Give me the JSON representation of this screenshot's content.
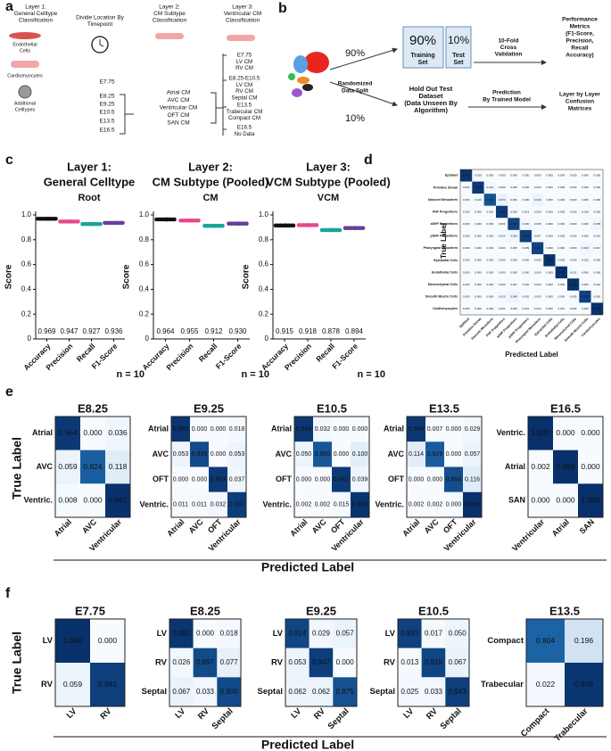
{
  "panel_a": {
    "letter": "a",
    "layer1": [
      "Layer 1:",
      "General Celltype",
      "Classification"
    ],
    "cells": [
      [
        "Endothelial",
        "Cells"
      ],
      [
        "Cardiomyocytes"
      ],
      [
        "Additional",
        "Celltypes"
      ]
    ],
    "timepoint_title": [
      "Divide Location By",
      "Timepoint"
    ],
    "timepoints": [
      "E7.75",
      "E8.25",
      "E9.25",
      "E10.5",
      "E13.5",
      "E16.5"
    ],
    "layer2": [
      "Layer 2:",
      "CM Subtype",
      "Classification"
    ],
    "cm_subtypes": [
      "Atrial CM",
      "AVC CM",
      "Ventricular CM",
      "OFT CM",
      "SAN CM"
    ],
    "layer3": [
      "Layer 3:",
      "Ventricular CM",
      "Classification"
    ],
    "vcm_groups": [
      [
        "E7.75",
        "LV CM",
        "RV CM"
      ],
      [
        "E8.25-E10.5",
        "LV CM",
        "RV CM",
        "Septal CM"
      ],
      [
        "E13.5",
        "Trabecular CM",
        "Compact CM"
      ],
      [
        "E16.5",
        "No Data"
      ]
    ]
  },
  "panel_b": {
    "letter": "b",
    "split_top": "90%",
    "split_bottom": "10%",
    "split_label": [
      "Randomized",
      "Data Split"
    ],
    "train_pct": "90%",
    "train_label": [
      "Training",
      "Set"
    ],
    "test_pct": "10%",
    "test_label": [
      "Test",
      "Set"
    ],
    "cv_label": [
      "10-Fold",
      "Cross",
      "Validation"
    ],
    "metrics_label": [
      "Performance",
      "Metrics",
      "(F1-Score,",
      "Precision,",
      "Recall",
      "Accuracy)"
    ],
    "holdout_label": [
      "Hold Out Test",
      "Dataset",
      "(Data Unseen By",
      "Algorithm)"
    ],
    "prediction_label": [
      "Prediction",
      "By Trained Model"
    ],
    "confusion_label": [
      "Layer by Layer",
      "Confusion",
      "Matrices"
    ]
  },
  "panel_c": {
    "letter": "c"
  },
  "panel_d": {
    "letter": "d",
    "y_label": "True Label",
    "x_label": "Predicted Label"
  },
  "panel_e": {
    "letter": "e",
    "y_label": "True Label",
    "x_label": "Predicted Label"
  },
  "panel_f": {
    "letter": "f",
    "y_label": "True Label",
    "x_label": "Predicted Label"
  },
  "chart_data": [
    {
      "type": "dot",
      "title": [
        "Layer 1:",
        "General Celltype"
      ],
      "subtitle": "Root",
      "y_label": "Score",
      "n_label": "n = 10",
      "categories": [
        "Accuracy",
        "Precision",
        "Recall",
        "F1-Score"
      ],
      "values": [
        0.969,
        0.947,
        0.927,
        0.936
      ],
      "value_labels": [
        "0.969",
        "0.947",
        "0.927",
        "0.936"
      ],
      "colors": [
        "#111111",
        "#e8478b",
        "#1aa39a",
        "#6a3d9a"
      ],
      "ylim": [
        0,
        1
      ],
      "yticks": [
        0,
        0.2,
        0.4,
        0.6,
        0.8,
        {
          "value": 1,
          "label": "1.0"
        }
      ]
    },
    {
      "type": "dot",
      "title": [
        "Layer 2:",
        "CM Subtype (Pooled)"
      ],
      "subtitle": "CM",
      "y_label": "Score",
      "n_label": "n = 10",
      "categories": [
        "Accuracy",
        "Precision",
        "Recall",
        "F1-Score"
      ],
      "values": [
        0.964,
        0.955,
        0.912,
        0.93
      ],
      "value_labels": [
        "0.964",
        "0.955",
        "0.912",
        "0.930"
      ],
      "colors": [
        "#111111",
        "#e8478b",
        "#1aa39a",
        "#6a3d9a"
      ],
      "ylim": [
        0,
        1
      ],
      "yticks": [
        0,
        0.2,
        0.4,
        0.6,
        0.8,
        {
          "value": 1,
          "label": "1.0"
        }
      ]
    },
    {
      "type": "dot",
      "title": [
        "Layer 3:",
        "VCM Subtype (Pooled)"
      ],
      "subtitle": "VCM",
      "y_label": "Score",
      "n_label": "n = 10",
      "categories": [
        "Accuracy",
        "Precision",
        "Recall",
        "F1-Score"
      ],
      "values": [
        0.915,
        0.918,
        0.878,
        0.894
      ],
      "value_labels": [
        "0.915",
        "0.918",
        "0.878",
        "0.894"
      ],
      "colors": [
        "#111111",
        "#e8478b",
        "#1aa39a",
        "#6a3d9a"
      ],
      "ylim": [
        0,
        1
      ],
      "yticks": [
        0,
        0.2,
        0.4,
        0.6,
        0.8,
        {
          "value": 1,
          "label": "1.0"
        }
      ]
    },
    {
      "type": "heatmap",
      "rows": [
        "Epiblast",
        "Primitive Streak",
        "Nascent Mesoderm",
        "FHF Progenitors",
        "aSHF Progenitors",
        "pSHF Progenitors",
        "Pharyngeal Mesoderm",
        "Epicardial Cells",
        "Endothelial Cells",
        "Mesenchymal Cells",
        "Smooth Muscle Cells",
        "Cardiomyocytes"
      ],
      "columns": [
        "Epiblast",
        "Primitive Streak",
        "Nascent Mesoderm",
        "FHF Progenitors",
        "aSHF Progenitors",
        "pSHF Progenitors",
        "Pharyngeal Mesoderm",
        "Epicardial Cells",
        "Endothelial Cells",
        "Mesenchymal Cells",
        "Smooth Muscle Cells",
        "Cardiomyocytes"
      ],
      "values": [
        [
          0.981,
          0.019,
          0,
          0,
          0,
          0,
          0,
          0,
          0,
          0,
          0,
          0
        ],
        [
          0,
          0.969,
          0.031,
          0,
          0,
          0,
          0,
          0,
          0,
          0,
          0,
          0
        ],
        [
          0,
          0.014,
          0.867,
          0.07,
          0,
          0,
          0.049,
          0,
          0,
          0,
          0,
          0
        ],
        [
          0,
          0,
          0,
          0.952,
          0.008,
          0.013,
          0.009,
          0,
          0,
          0,
          0.018,
          0
        ],
        [
          0,
          0,
          0,
          0.003,
          0.924,
          0.03,
          0.008,
          0,
          0,
          0,
          0,
          0.035
        ],
        [
          0,
          0,
          0,
          0.014,
          0.034,
          0.944,
          0.007,
          0,
          0,
          0,
          0,
          0.001
        ],
        [
          0,
          0,
          0,
          0.004,
          0.005,
          0.009,
          0.922,
          0,
          0,
          0,
          0.043,
          0.017
        ],
        [
          0,
          0,
          0,
          0,
          0,
          0,
          0,
          0.988,
          0,
          0,
          0.012,
          0
        ],
        [
          0,
          0,
          0,
          0,
          0,
          0,
          0,
          0,
          0.989,
          0.011,
          0,
          0
        ],
        [
          0,
          0,
          0,
          0,
          0.001,
          0,
          0,
          0,
          0.002,
          0.992,
          0.004,
          0.001
        ],
        [
          0,
          0,
          0,
          0.019,
          0.049,
          0.002,
          0,
          0,
          0,
          0.005,
          0.925,
          0
        ],
        [
          0,
          0,
          0,
          0.001,
          0,
          0.001,
          0,
          0,
          0.001,
          0.002,
          0,
          0.995
        ]
      ],
      "value_labels": [
        [
          "0.981",
          "0.019",
          "0.000",
          "0.000",
          "0.000",
          "0.000",
          "0.000",
          "0.000",
          "0.000",
          "0.000",
          "0.000",
          "0.000"
        ],
        [
          "0.000",
          "0.969",
          "0.031",
          "0.000",
          "0.000",
          "0.000",
          "0.000",
          "0.000",
          "0.000",
          "0.000",
          "0.000",
          "0.000"
        ],
        [
          "0.000",
          "0.014",
          "0.867",
          "0.070",
          "0.000",
          "0.000",
          "0.049",
          "0.000",
          "0.000",
          "0.000",
          "0.000",
          "0.000"
        ],
        [
          "0.000",
          "0.000",
          "0.000",
          "0.952",
          "0.008",
          "0.013",
          "0.009",
          "0.000",
          "0.000",
          "0.000",
          "0.018",
          "0.000"
        ],
        [
          "0.000",
          "0.000",
          "0.000",
          "0.003",
          "0.924",
          "0.030",
          "0.008",
          "0.000",
          "0.000",
          "0.000",
          "0.000",
          "0.035"
        ],
        [
          "0.000",
          "0.000",
          "0.000",
          "0.014",
          "0.034",
          "0.944",
          "0.007",
          "0.000",
          "0.000",
          "0.000",
          "0.000",
          "0.001"
        ],
        [
          "0.000",
          "0.000",
          "0.000",
          "0.004",
          "0.005",
          "0.009",
          "0.922",
          "0.000",
          "0.000",
          "0.000",
          "0.043",
          "0.017"
        ],
        [
          "0.000",
          "0.000",
          "0.000",
          "0.000",
          "0.000",
          "0.000",
          "0.000",
          "0.988",
          "0.000",
          "0.000",
          "0.012",
          "0.000"
        ],
        [
          "0.000",
          "0.000",
          "0.000",
          "0.000",
          "0.000",
          "0.000",
          "0.000",
          "0.000",
          "0.989",
          "0.011",
          "0.000",
          "0.000"
        ],
        [
          "0.000",
          "0.000",
          "0.000",
          "0.000",
          "0.001",
          "0.000",
          "0.000",
          "0.000",
          "0.002",
          "0.992",
          "0.004",
          "0.001"
        ],
        [
          "0.000",
          "0.000",
          "0.000",
          "0.019",
          "0.049",
          "0.002",
          "0.000",
          "0.000",
          "0.000",
          "0.005",
          "0.925",
          "0.000"
        ],
        [
          "0.000",
          "0.000",
          "0.000",
          "0.001",
          "0.000",
          "0.001",
          "0.000",
          "0.000",
          "0.001",
          "0.002",
          "0.000",
          "0.995"
        ]
      ],
      "colormap": "Blues"
    },
    {
      "type": "heatmap",
      "title": "E8.25",
      "rows": [
        "Atrial",
        "AVC",
        "Ventric."
      ],
      "columns": [
        "Atrial",
        "AVC",
        "Ventricular"
      ],
      "values": [
        [
          0.964,
          0,
          0.036
        ],
        [
          0.059,
          0.824,
          0.118
        ],
        [
          0.008,
          0,
          0.992
        ]
      ],
      "value_labels": [
        [
          "0.964",
          "0.000",
          "0.036"
        ],
        [
          "0.059",
          "0.824",
          "0.118"
        ],
        [
          "0.008",
          "0.000",
          "0.992"
        ]
      ],
      "colormap": "Blues"
    },
    {
      "type": "heatmap",
      "title": "E9.25",
      "rows": [
        "Atrial",
        "AVC",
        "OFT",
        "Ventric."
      ],
      "columns": [
        "Atrial",
        "AVC",
        "OFT",
        "Ventricular"
      ],
      "values": [
        [
          0.982,
          0,
          0,
          0.018
        ],
        [
          0.053,
          0.895,
          0,
          0.053
        ],
        [
          0,
          0,
          0.963,
          0.037
        ],
        [
          0.011,
          0.011,
          0.032,
          0.947
        ]
      ],
      "value_labels": [
        [
          "0.982",
          "0.000",
          "0.000",
          "0.018"
        ],
        [
          "0.053",
          "0.895",
          "0.000",
          "0.053"
        ],
        [
          "0.000",
          "0.000",
          "0.963",
          "0.037"
        ],
        [
          "0.011",
          "0.011",
          "0.032",
          "0.947"
        ]
      ],
      "colormap": "Blues"
    },
    {
      "type": "heatmap",
      "title": "E10.5",
      "rows": [
        "Atrial",
        "AVC",
        "OFT",
        "Ventric."
      ],
      "columns": [
        "Atrial",
        "AVC",
        "OFT",
        "Ventricular"
      ],
      "values": [
        [
          0.968,
          0.032,
          0,
          0
        ],
        [
          0.05,
          0.85,
          0,
          0.1
        ],
        [
          0,
          0,
          0.961,
          0.039
        ],
        [
          0.002,
          0.002,
          0.015,
          0.983
        ]
      ],
      "value_labels": [
        [
          "0.968",
          "0.032",
          "0.000",
          "0.000"
        ],
        [
          "0.050",
          "0.850",
          "0.000",
          "0.100"
        ],
        [
          "0.000",
          "0.000",
          "0.961",
          "0.039"
        ],
        [
          "0.002",
          "0.002",
          "0.015",
          "0.983"
        ]
      ],
      "colormap": "Blues"
    },
    {
      "type": "heatmap",
      "title": "E13.5",
      "rows": [
        "Atrial",
        "AVC",
        "OFT",
        "Ventric."
      ],
      "columns": [
        "Atrial",
        "AVC",
        "OFT",
        "Ventricular"
      ],
      "values": [
        [
          0.964,
          0.007,
          0,
          0.029
        ],
        [
          0.114,
          0.829,
          0,
          0.057
        ],
        [
          0,
          0,
          0.884,
          0.116
        ],
        [
          0.002,
          0.002,
          0,
          0.996
        ]
      ],
      "value_labels": [
        [
          "0.964",
          "0.007",
          "0.000",
          "0.029"
        ],
        [
          "0.114",
          "0.829",
          "0.000",
          "0.057"
        ],
        [
          "0.000",
          "0.000",
          "0.884",
          "0.116"
        ],
        [
          "0.002",
          "0.002",
          "0.000",
          "0.996"
        ]
      ],
      "colormap": "Blues"
    },
    {
      "type": "heatmap",
      "title": "E16.5",
      "rows": [
        "Ventric.",
        "Atrial",
        "SAN"
      ],
      "columns": [
        "Ventricular",
        "Atrial",
        "SAN"
      ],
      "values": [
        [
          1,
          0,
          0
        ],
        [
          0.002,
          0.998,
          0
        ],
        [
          0,
          0,
          1
        ]
      ],
      "value_labels": [
        [
          "1.000",
          "0.000",
          "0.000"
        ],
        [
          "0.002",
          "0.998",
          "0.000"
        ],
        [
          "0.000",
          "0.000",
          "1.000"
        ]
      ],
      "colormap": "Blues"
    },
    {
      "type": "heatmap",
      "title": "E7.75",
      "rows": [
        "LV",
        "RV"
      ],
      "columns": [
        "LV",
        "RV"
      ],
      "values": [
        [
          1,
          0
        ],
        [
          0.059,
          0.941
        ]
      ],
      "value_labels": [
        [
          "1.000",
          "0.000"
        ],
        [
          "0.059",
          "0.941"
        ]
      ],
      "colormap": "Blues"
    },
    {
      "type": "heatmap",
      "title": "E8.25",
      "rows": [
        "LV",
        "RV",
        "Septal"
      ],
      "columns": [
        "LV",
        "RV",
        "Septal"
      ],
      "values": [
        [
          0.982,
          0,
          0.018
        ],
        [
          0.026,
          0.897,
          0.077
        ],
        [
          0.067,
          0.033,
          0.9
        ]
      ],
      "value_labels": [
        [
          "0.982",
          "0.000",
          "0.018"
        ],
        [
          "0.026",
          "0.897",
          "0.077"
        ],
        [
          "0.067",
          "0.033",
          "0.900"
        ]
      ],
      "colormap": "Blues"
    },
    {
      "type": "heatmap",
      "title": "E9.25",
      "rows": [
        "LV",
        "RV",
        "Septal"
      ],
      "columns": [
        "LV",
        "RV",
        "Septal"
      ],
      "values": [
        [
          0.914,
          0.029,
          0.057
        ],
        [
          0.053,
          0.947,
          0
        ],
        [
          0.062,
          0.062,
          0.875
        ]
      ],
      "value_labels": [
        [
          "0.914",
          "0.029",
          "0.057"
        ],
        [
          "0.053",
          "0.947",
          "0.000"
        ],
        [
          "0.062",
          "0.062",
          "0.875"
        ]
      ],
      "colormap": "Blues"
    },
    {
      "type": "heatmap",
      "title": "E10.5",
      "rows": [
        "LV",
        "RV",
        "Septal"
      ],
      "columns": [
        "LV",
        "RV",
        "Septal"
      ],
      "values": [
        [
          0.933,
          0.017,
          0.05
        ],
        [
          0.013,
          0.919,
          0.067
        ],
        [
          0.025,
          0.033,
          0.943
        ]
      ],
      "value_labels": [
        [
          "0.933",
          "0.017",
          "0.050"
        ],
        [
          "0.013",
          "0.919",
          "0.067"
        ],
        [
          "0.025",
          "0.033",
          "0.943"
        ]
      ],
      "colormap": "Blues"
    },
    {
      "type": "heatmap",
      "title": "E13.5",
      "rows": [
        "Compact",
        "Trabecular"
      ],
      "columns": [
        "Compact",
        "Trabecular"
      ],
      "values": [
        [
          0.804,
          0.196
        ],
        [
          0.022,
          0.978
        ]
      ],
      "value_labels": [
        [
          "0.804",
          "0.196"
        ],
        [
          "0.022",
          "0.978"
        ]
      ],
      "colormap": "Blues"
    }
  ]
}
